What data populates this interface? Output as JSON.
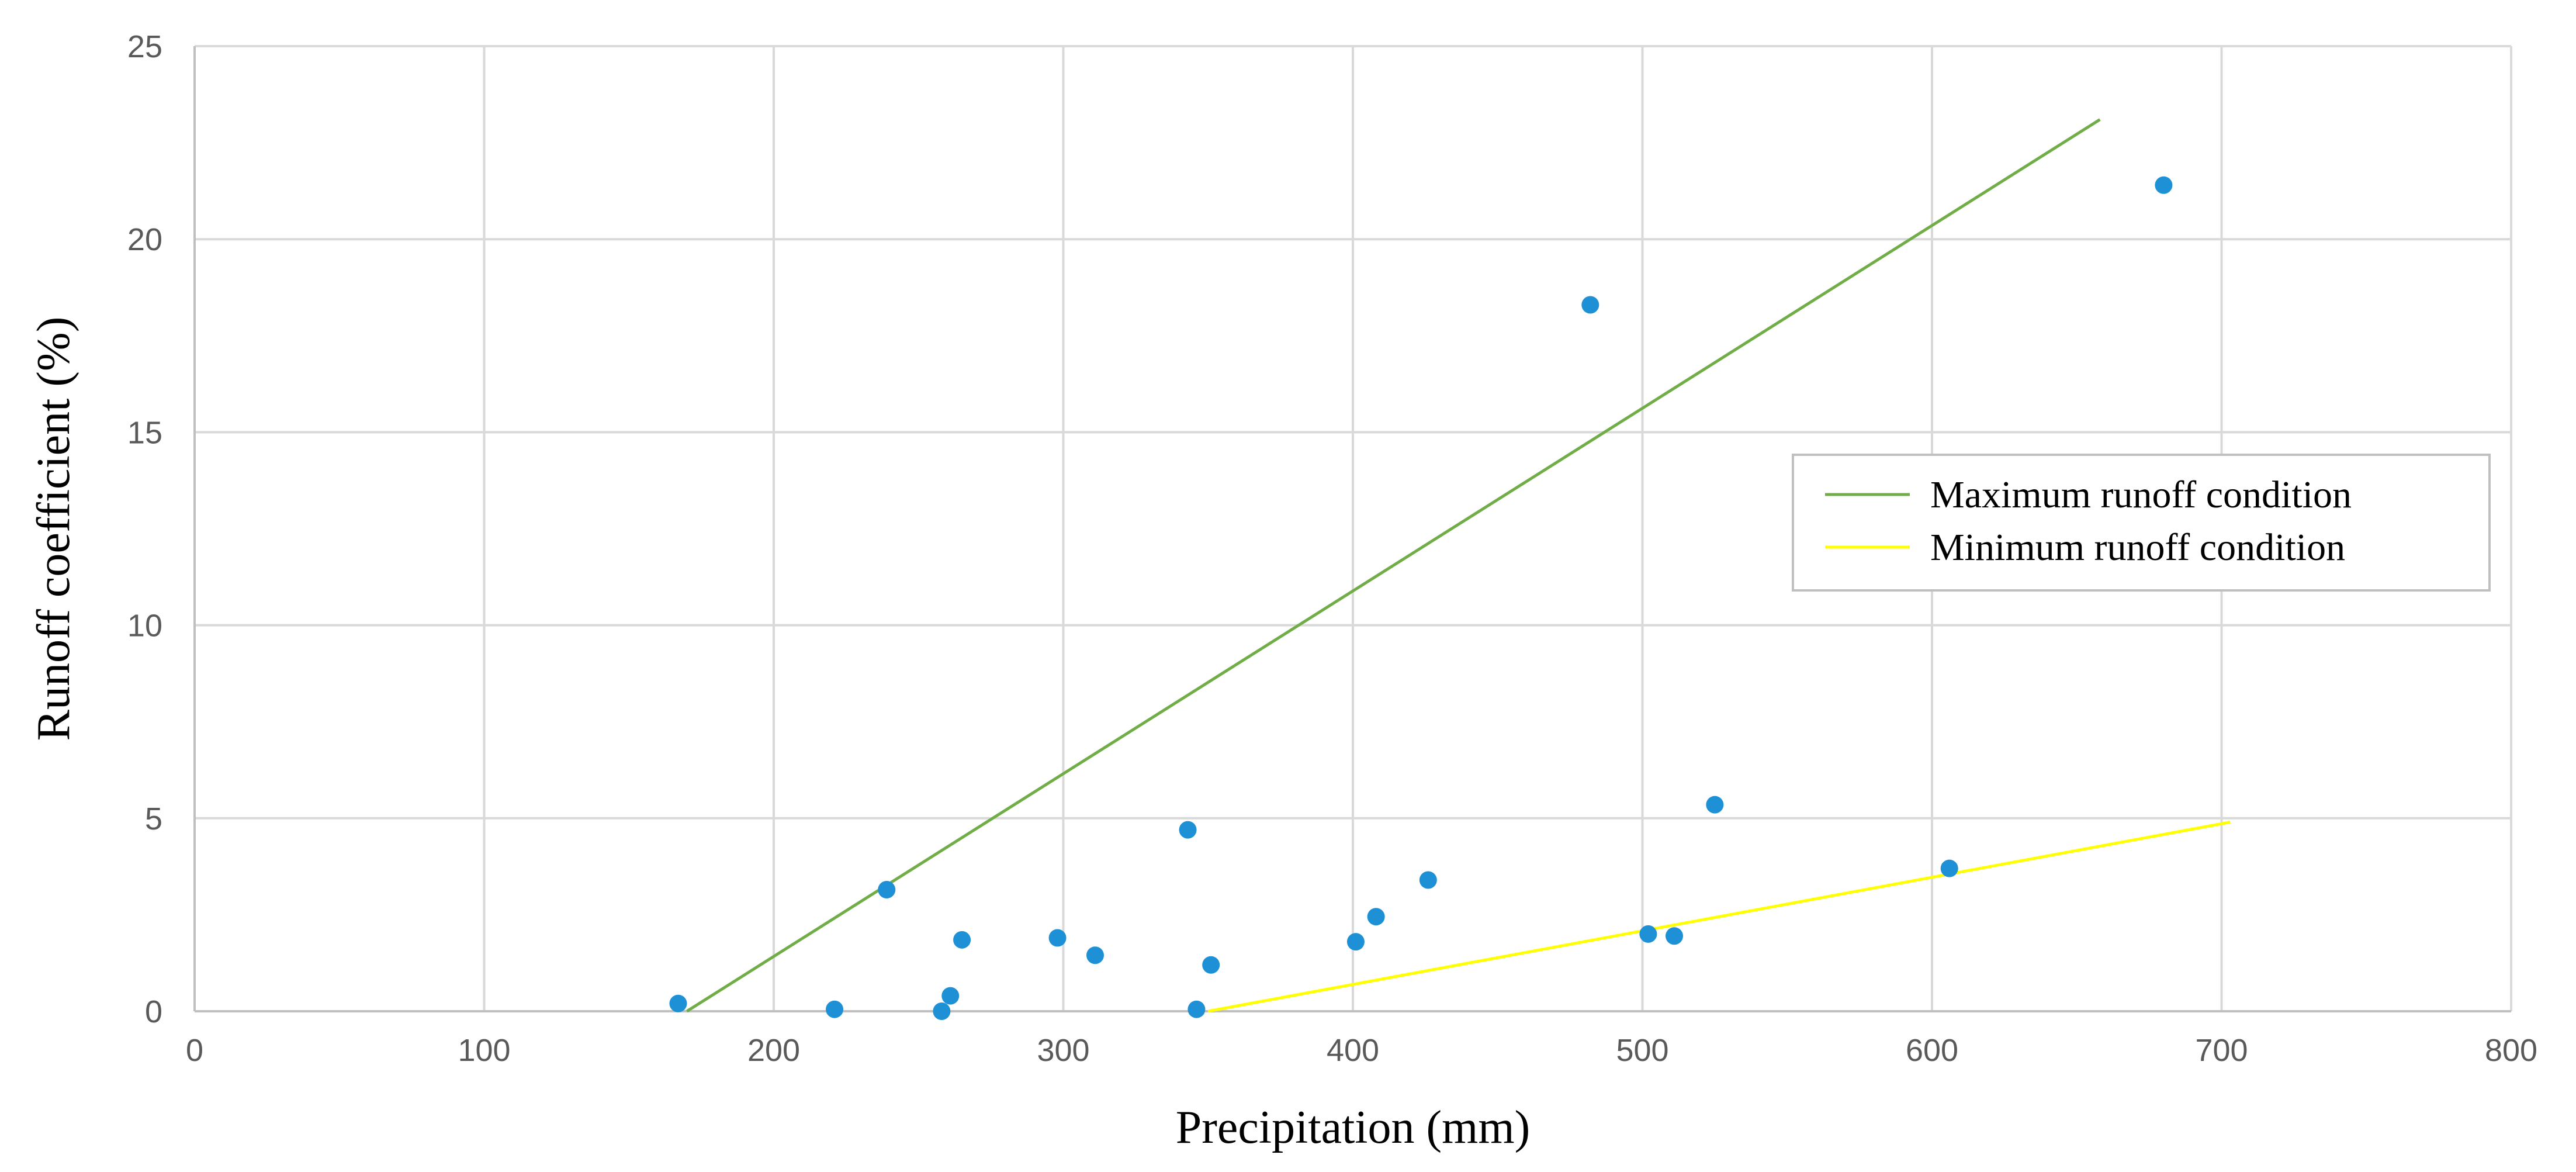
{
  "chart_data": {
    "type": "scatter",
    "title": "",
    "xlabel": "Precipitation (mm)",
    "ylabel": "Runoff coefficient (%)",
    "xlim": [
      0,
      800
    ],
    "ylim": [
      0,
      25
    ],
    "x_ticks": [
      0,
      100,
      200,
      300,
      400,
      500,
      600,
      700,
      800
    ],
    "y_ticks": [
      0,
      5,
      10,
      15,
      20,
      25
    ],
    "x_tick_labels": [
      "0",
      "100",
      "200",
      "300",
      "400",
      "500",
      "600",
      "700",
      "800"
    ],
    "y_tick_labels": [
      "0",
      "5",
      "10",
      "15",
      "20",
      "25"
    ],
    "grid": true,
    "legend_position": "right",
    "points": {
      "color": "#1e90d6",
      "x": [
        167,
        221,
        239,
        258,
        261,
        265,
        298,
        311,
        343,
        346,
        351,
        401,
        408,
        426,
        482,
        502,
        511,
        525,
        606,
        680
      ],
      "y": [
        0.2,
        0.05,
        3.15,
        0.0,
        0.4,
        1.85,
        1.9,
        1.45,
        4.7,
        0.05,
        1.2,
        1.8,
        2.45,
        3.4,
        18.3,
        2.0,
        1.95,
        5.35,
        3.7,
        21.4
      ]
    },
    "lines": [
      {
        "name": "Maximum runoff condition",
        "color": "#70ad47",
        "x": [
          170,
          658
        ],
        "y": [
          0,
          23.1
        ]
      },
      {
        "name": "Minimum runoff condition",
        "color": "#ffff00",
        "x": [
          350,
          703
        ],
        "y": [
          0,
          4.9
        ]
      }
    ]
  }
}
